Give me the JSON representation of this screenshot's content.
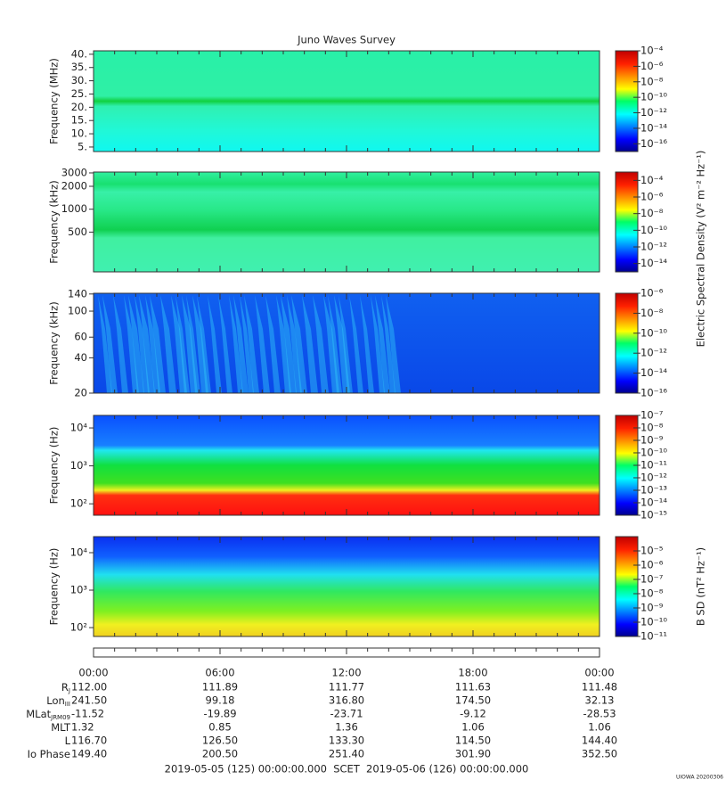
{
  "title": "Juno Waves Survey",
  "chart_data": [
    {
      "type": "spectrogram",
      "ylabel": "Frequency (MHz)",
      "yscale": "linear",
      "ylim": [
        3.3,
        41.3
      ],
      "yticks": [
        {
          "value": 5,
          "label": "5."
        },
        {
          "value": 10,
          "label": "10."
        },
        {
          "value": 15,
          "label": "15."
        },
        {
          "value": 20,
          "label": "20."
        },
        {
          "value": 25,
          "label": "25."
        },
        {
          "value": 30,
          "label": "30."
        },
        {
          "value": 35,
          "label": "35."
        },
        {
          "value": 40,
          "label": "40."
        }
      ],
      "zscale": "log",
      "zlim": [
        1e-17,
        0.0001
      ],
      "zticks": [
        {
          "value": 0.0001,
          "label": "10⁻⁴"
        },
        {
          "value": 1e-06,
          "label": "10⁻⁶"
        },
        {
          "value": 1e-08,
          "label": "10⁻⁸"
        },
        {
          "value": 1e-10,
          "label": "10⁻¹⁰"
        },
        {
          "value": 1e-12,
          "label": "10⁻¹²"
        },
        {
          "value": 1e-14,
          "label": "10⁻¹⁴"
        },
        {
          "value": 1e-16,
          "label": "10⁻¹⁶"
        }
      ]
    },
    {
      "type": "spectrogram",
      "ylabel": "Frequency (kHz)",
      "yscale": "log",
      "ylim": [
        150,
        3080
      ],
      "yticks": [
        500,
        1000,
        2000,
        3000
      ],
      "zscale": "log",
      "zlim": [
        1e-15,
        0.001
      ],
      "zticks": [
        {
          "value": 0.0001,
          "label": "10⁻⁴"
        },
        {
          "value": 1e-06,
          "label": "10⁻⁶"
        },
        {
          "value": 1e-08,
          "label": "10⁻⁸"
        },
        {
          "value": 1e-10,
          "label": "10⁻¹⁰"
        },
        {
          "value": 1e-12,
          "label": "10⁻¹²"
        },
        {
          "value": 1e-14,
          "label": "10⁻¹⁴"
        }
      ],
      "zlabel": "Electric Spectral Density (V² m⁻² Hz⁻¹)"
    },
    {
      "type": "spectrogram",
      "ylabel": "Frequency (kHz)",
      "yscale": "log",
      "ylim": [
        20,
        142
      ],
      "yticks": [
        20,
        40,
        60,
        100,
        140
      ],
      "zscale": "log",
      "zlim": [
        1e-16,
        1e-06
      ],
      "zticks": [
        {
          "value": 1e-06,
          "label": "10⁻⁶"
        },
        {
          "value": 1e-08,
          "label": "10⁻⁸"
        },
        {
          "value": 1e-10,
          "label": "10⁻¹⁰"
        },
        {
          "value": 1e-12,
          "label": "10⁻¹²"
        },
        {
          "value": 1e-14,
          "label": "10⁻¹⁴"
        },
        {
          "value": 1e-16,
          "label": "10⁻¹⁶"
        }
      ]
    },
    {
      "type": "spectrogram",
      "ylabel": "Frequency (Hz)",
      "yscale": "log",
      "ylim": [
        50,
        21400
      ],
      "yticks": [
        {
          "value": 100,
          "label": "10²"
        },
        {
          "value": 1000,
          "label": "10³"
        },
        {
          "value": 10000,
          "label": "10⁴"
        }
      ],
      "zscale": "log",
      "zlim": [
        1e-15,
        1e-07
      ],
      "zticks": [
        {
          "value": 1e-07,
          "label": "10⁻⁷"
        },
        {
          "value": 1e-08,
          "label": "10⁻⁸"
        },
        {
          "value": 1e-09,
          "label": "10⁻⁹"
        },
        {
          "value": 1e-10,
          "label": "10⁻¹⁰"
        },
        {
          "value": 1e-11,
          "label": "10⁻¹¹"
        },
        {
          "value": 1e-12,
          "label": "10⁻¹²"
        },
        {
          "value": 1e-13,
          "label": "10⁻¹³"
        },
        {
          "value": 1e-14,
          "label": "10⁻¹⁴"
        },
        {
          "value": 1e-15,
          "label": "10⁻¹⁵"
        }
      ]
    },
    {
      "type": "spectrogram",
      "ylabel": "Frequency (Hz)",
      "yscale": "log",
      "ylim": [
        58,
        26800
      ],
      "yticks": [
        {
          "value": 100,
          "label": "10²"
        },
        {
          "value": 1000,
          "label": "10³"
        },
        {
          "value": 10000,
          "label": "10⁴"
        }
      ],
      "zscale": "log",
      "zlim": [
        1e-11,
        0.0001
      ],
      "zticks": [
        {
          "value": 1e-05,
          "label": "10⁻⁵"
        },
        {
          "value": 1e-06,
          "label": "10⁻⁶"
        },
        {
          "value": 1e-07,
          "label": "10⁻⁷"
        },
        {
          "value": 1e-08,
          "label": "10⁻⁸"
        },
        {
          "value": 1e-09,
          "label": "10⁻⁹"
        },
        {
          "value": 1e-10,
          "label": "10⁻¹⁰"
        },
        {
          "value": 1e-11,
          "label": "10⁻¹¹"
        }
      ],
      "zlabel": "B SD (nT² Hz⁻¹)"
    }
  ],
  "time_axis": [
    "00:00",
    "06:00",
    "12:00",
    "18:00",
    "00:00"
  ],
  "ephemeris": [
    {
      "name": "R",
      "sub": "J",
      "values": [
        "112.00",
        "111.89",
        "111.77",
        "111.63",
        "111.48"
      ]
    },
    {
      "name": "Lon",
      "sub": "III",
      "values": [
        "241.50",
        "99.18",
        "316.80",
        "174.50",
        "32.13"
      ]
    },
    {
      "name": "MLat",
      "sub": "JRM09",
      "values": [
        "-11.52",
        "-19.89",
        "-23.71",
        "-9.12",
        "-28.53"
      ]
    },
    {
      "name": "MLT",
      "values": [
        "1.32",
        "0.85",
        "1.36",
        "1.06",
        "1.06"
      ]
    },
    {
      "name": "L",
      "values": [
        "116.70",
        "126.50",
        "133.30",
        "114.50",
        "144.40"
      ]
    },
    {
      "name": "Io Phase",
      "values": [
        "149.40",
        "200.50",
        "251.40",
        "301.90",
        "352.50"
      ]
    }
  ],
  "footer": {
    "start": "2019-05-05 (125) 00:00:00.000",
    "label": "SCET",
    "end": "2019-05-06 (126) 00:00:00.000"
  },
  "credit": "UIOWA 20200306"
}
